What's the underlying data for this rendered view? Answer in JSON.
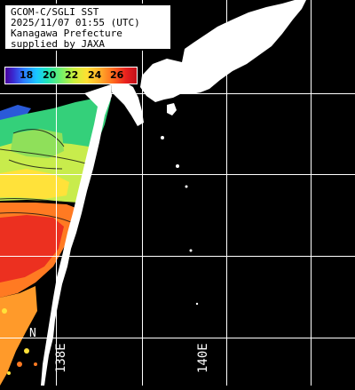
{
  "title_block": {
    "line1": "GCOM-C/SGLI SST",
    "line2": "2025/11/07 01:55 (UTC)",
    "line3": "Kanagawa Prefecture",
    "line4": "supplied by JAXA"
  },
  "legend": {
    "ticks": [
      "18",
      "20",
      "22",
      "24",
      "26"
    ]
  },
  "graticule": {
    "lon_labels": [
      "138E",
      "140E"
    ],
    "lat_label": "N"
  },
  "colors": {
    "background": "#000000",
    "land": "#ffffff",
    "grid": "#ffffff"
  }
}
